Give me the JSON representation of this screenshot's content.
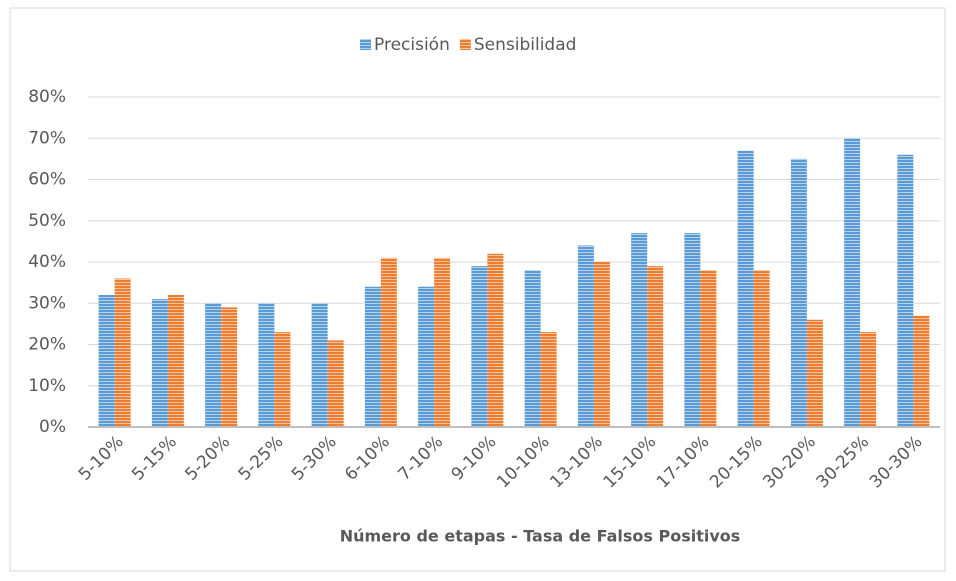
{
  "chart_data": {
    "type": "bar",
    "x_label": "Número de etapas - Tasa de Falsos Positivos",
    "categories": [
      "5-10%",
      "5-15%",
      "5-20%",
      "5-25%",
      "5-30%",
      "6-10%",
      "7-10%",
      "9-10%",
      "10-10%",
      "13-10%",
      "15-10%",
      "17-10%",
      "20-15%",
      "30-20%",
      "30-25%",
      "30-30%"
    ],
    "series": [
      {
        "name": "Precisión",
        "color": "#5b9bd5",
        "values": [
          32,
          31,
          30,
          30,
          30,
          34,
          34,
          39,
          38,
          44,
          47,
          47,
          67,
          65,
          70,
          66
        ]
      },
      {
        "name": "Sensibilidad",
        "color": "#ed7d31",
        "values": [
          36,
          32,
          29,
          23,
          21,
          41,
          41,
          42,
          23,
          40,
          39,
          38,
          38,
          26,
          23,
          27
        ]
      }
    ],
    "ylim": [
      0,
      80
    ],
    "yticks": [
      {
        "value": 0,
        "label": "0%"
      },
      {
        "value": 10,
        "label": "10%"
      },
      {
        "value": 20,
        "label": "20%"
      },
      {
        "value": 30,
        "label": "30%"
      },
      {
        "value": 40,
        "label": "40%"
      },
      {
        "value": 50,
        "label": "50%"
      },
      {
        "value": 60,
        "label": "60%"
      },
      {
        "value": 70,
        "label": "70%"
      },
      {
        "value": 80,
        "label": "80%"
      }
    ],
    "grid": true,
    "legend": "top"
  }
}
